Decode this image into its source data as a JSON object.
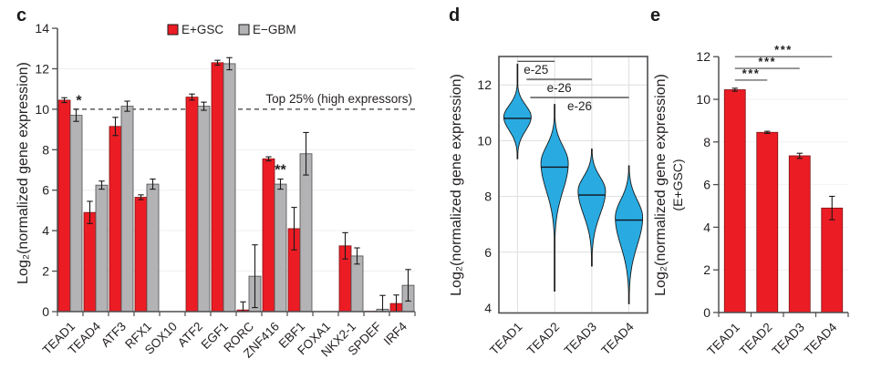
{
  "figure": {
    "background": "#ffffff"
  },
  "colors": {
    "red": "#EC1C24",
    "red_border": "#7E1416",
    "gray": "#B3B3B5",
    "gray_border": "#4D4D4D",
    "cyan": "#29ABE2",
    "violin_outline": "#1A1A1A",
    "axis": "#4D4E50",
    "error_bar": "#1A1A1A",
    "threshold": "#3A3A3A",
    "grid_light": "#EFEFEF",
    "grid_d": "#DEDEDE",
    "sig_gray": "#808080",
    "sig_black": "#1A1A1A",
    "text": "#231F20"
  },
  "panels": {
    "c": {
      "letter": "c"
    },
    "d": {
      "letter": "d"
    },
    "e": {
      "letter": "e"
    }
  },
  "chart_data": [
    {
      "id": "c",
      "type": "bar",
      "title": "",
      "xlabel": "",
      "ylabel": "Log₂(normalized gene expression)",
      "ylim": [
        0,
        14
      ],
      "yticks": [
        0,
        2,
        4,
        6,
        8,
        10,
        12,
        14
      ],
      "gridlines": [
        2,
        4,
        6,
        8,
        12
      ],
      "grid_color": "#EFEFEF",
      "legend_position": "top",
      "categories": [
        "TEAD1",
        "TEAD4",
        "ATF3",
        "RFX1",
        "SOX10",
        "ATF2",
        "EGF1",
        "RORC",
        "ZNF416",
        "EBF1",
        "FOXA1",
        "NKX2-1",
        "SPDEF",
        "IRF4"
      ],
      "series": [
        {
          "name": "E+GSC",
          "color": "#EC1C24",
          "border": "#7E1416",
          "values": [
            10.45,
            4.9,
            9.15,
            5.65,
            0,
            10.6,
            12.3,
            0.08,
            7.55,
            4.1,
            0,
            3.25,
            0.02,
            0.4
          ],
          "errors": [
            0.12,
            0.55,
            0.45,
            0.12,
            0,
            0.15,
            0.12,
            0.4,
            0.1,
            1.05,
            0,
            0.65,
            0,
            0.42
          ]
        },
        {
          "name": "E−GBM",
          "color": "#B3B3B5",
          "border": "#4D4D4D",
          "values": [
            9.7,
            6.25,
            10.15,
            6.3,
            0,
            10.15,
            12.25,
            1.75,
            6.3,
            7.8,
            0,
            2.75,
            0.12,
            1.3
          ],
          "errors": [
            0.3,
            0.2,
            0.25,
            0.25,
            0,
            0.2,
            0.3,
            1.55,
            0.25,
            1.05,
            0,
            0.4,
            0.68,
            0.78
          ]
        }
      ],
      "threshold": {
        "value": 10,
        "label": "Top 25% (high expressors)",
        "style": "dashed"
      },
      "annotations": [
        {
          "category": "TEAD1",
          "series": 1,
          "text": "*",
          "value": 10.2,
          "dx": 3
        },
        {
          "category": "ZNF416",
          "series": 1,
          "text": "**",
          "value": 6.78,
          "dx": 0
        }
      ]
    },
    {
      "id": "d",
      "type": "violin",
      "title": "",
      "xlabel": "",
      "ylabel": "Log₂(normalized gene expression)",
      "ylim": [
        3.8,
        13.0
      ],
      "yticks": [
        4,
        6,
        8,
        10,
        12
      ],
      "gridlines_h": [
        6,
        8,
        10,
        12
      ],
      "grid_color": "#DEDEDE",
      "fill": "#29ABE2",
      "outline": "#1A1A1A",
      "categories": [
        "TEAD1",
        "TEAD2",
        "TEAD3",
        "TEAD4"
      ],
      "violins": [
        {
          "label": "TEAD1",
          "min": 9.35,
          "max": 12.75,
          "median": 10.8,
          "mode": 10.85,
          "sigma_low": 0.48,
          "sigma_high": 0.42
        },
        {
          "label": "TEAD2",
          "min": 4.6,
          "max": 11.3,
          "median": 9.05,
          "mode": 9.2,
          "sigma_low": 1.0,
          "sigma_high": 0.6
        },
        {
          "label": "TEAD3",
          "min": 5.5,
          "max": 9.7,
          "median": 8.05,
          "mode": 8.2,
          "sigma_low": 0.85,
          "sigma_high": 0.5
        },
        {
          "label": "TEAD4",
          "min": 4.15,
          "max": 9.1,
          "median": 7.15,
          "mode": 7.25,
          "sigma_low": 1.0,
          "sigma_high": 0.62
        }
      ],
      "comparisons": [
        {
          "from": "TEAD1",
          "to": "TEAD2",
          "label": "e-25",
          "line_y": 12.85,
          "style": "thin-black"
        },
        {
          "from": "TEAD1",
          "to": "TEAD3",
          "label": "e-26",
          "line_y": 12.2,
          "style": "gray"
        },
        {
          "from": "TEAD1",
          "to": "TEAD4",
          "label": "e-26",
          "line_y": 11.55,
          "style": "gray"
        }
      ]
    },
    {
      "id": "e",
      "type": "bar",
      "title": "",
      "xlabel": "",
      "ylabel": "Log₂(normalized gene expression)",
      "ylabel2": "(E+GSC)",
      "ylim": [
        0,
        12
      ],
      "yticks": [
        0,
        2,
        4,
        6,
        8,
        10,
        12
      ],
      "gridlines": [
        2,
        4,
        6,
        8,
        10
      ],
      "grid_color": "#F2F2F2",
      "categories": [
        "TEAD1",
        "TEAD2",
        "TEAD3",
        "TEAD4"
      ],
      "series": [
        {
          "name": "E+GSC",
          "color": "#EC1C24",
          "border": "#7E1416",
          "values": [
            10.45,
            8.45,
            7.35,
            4.9
          ],
          "errors": [
            0.07,
            0.05,
            0.12,
            0.55
          ]
        }
      ],
      "comparisons": [
        {
          "from": "TEAD1",
          "to": "TEAD2",
          "label": "***",
          "line_y": 10.9
        },
        {
          "from": "TEAD1",
          "to": "TEAD3",
          "label": "***",
          "line_y": 11.45
        },
        {
          "from": "TEAD1",
          "to": "TEAD4",
          "label": "***",
          "line_y": 12.0
        }
      ]
    }
  ]
}
